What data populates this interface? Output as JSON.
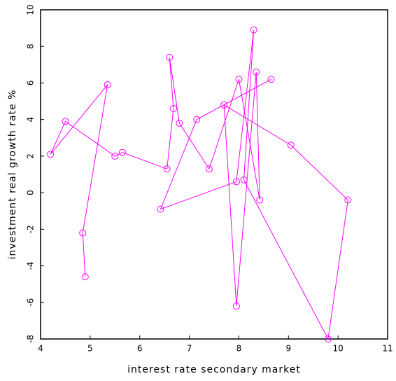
{
  "chart_data": {
    "type": "line",
    "x_label": "interest rate secondary market",
    "y_label": "investment real growth rate %",
    "x": [
      4.9,
      4.85,
      5.35,
      4.2,
      4.5,
      5.5,
      5.65,
      6.55,
      6.68,
      6.6,
      6.8,
      7.4,
      8.0,
      8.42,
      8.35,
      7.95,
      7.7,
      9.05,
      10.2,
      9.8,
      8.1,
      8.3,
      7.95,
      6.42,
      7.15,
      8.65
    ],
    "series": [
      {
        "color": "#ff00ff",
        "values": [
          -4.6,
          -2.2,
          5.9,
          2.1,
          3.9,
          2.0,
          2.2,
          1.3,
          4.6,
          7.4,
          3.8,
          1.3,
          6.2,
          -0.4,
          6.6,
          -6.2,
          4.8,
          2.6,
          -0.4,
          -8.0,
          0.7,
          8.9,
          0.6,
          -0.9,
          4.0,
          6.2
        ]
      }
    ],
    "xlim": [
      4,
      11
    ],
    "xticks": [
      4,
      5,
      6,
      7,
      8,
      9,
      10,
      11
    ],
    "ylim": [
      -8,
      10
    ],
    "yticks": [
      -8,
      -6,
      -4,
      -2,
      0,
      2,
      4,
      6,
      8,
      10
    ]
  }
}
